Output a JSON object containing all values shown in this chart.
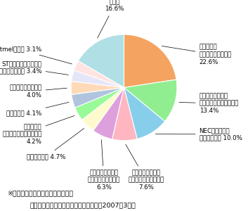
{
  "slices": [
    {
      "label": "ルネサス・\nテクノロジー（日）\n22.6%",
      "value": 22.6,
      "color": "#F4A460"
    },
    {
      "label": "フリースケール・\nセミコンダクター（米）\n13.4%",
      "value": 13.4,
      "color": "#90EE90"
    },
    {
      "label": "NECエレクトロ\nニクス（日） 10.0%",
      "value": 10.0,
      "color": "#87CEEB"
    },
    {
      "label": "インフィニオン・\nテクノロジーズ（独）\n7.6%",
      "value": 7.6,
      "color": "#FFB6C1"
    },
    {
      "label": "マイクロチップ・\nテクノロジー（米）\n6.3%",
      "value": 6.3,
      "color": "#DDA0DD"
    },
    {
      "label": "富士通（日） 4.7%",
      "value": 4.7,
      "color": "#FFFACD"
    },
    {
      "label": "テキサス・\nインスツルメンツ（米）\n4.2%",
      "value": 4.2,
      "color": "#98FB98"
    },
    {
      "label": "東苝（日） 4.1%",
      "value": 4.1,
      "color": "#B0C4DE"
    },
    {
      "label": "松下電器産業（日）\n4.0%",
      "value": 4.0,
      "color": "#FFDAB9"
    },
    {
      "label": "STマイクロエレクトロ\nニクス（伊／仏） 3.4%",
      "value": 3.4,
      "color": "#E6E6FA"
    },
    {
      "label": "Atmel（米） 3.1%",
      "value": 3.1,
      "color": "#FFE4E1"
    },
    {
      "label": "その他\n16.6%",
      "value": 16.6,
      "color": "#B0E0E6"
    }
  ],
  "note1": "※　３％以上のシェアを有する企業",
  "note2": "（出典）ガートナー　データクエスト（2007年3月）",
  "bg_color": "#FFFFFF",
  "label_positions": [
    {
      "xt": 1.42,
      "yt": 0.62,
      "ha": "left",
      "va": "center"
    },
    {
      "xt": 1.42,
      "yt": -0.3,
      "ha": "left",
      "va": "center"
    },
    {
      "xt": 1.42,
      "yt": -0.88,
      "ha": "left",
      "va": "center"
    },
    {
      "xt": 0.42,
      "yt": -1.55,
      "ha": "center",
      "va": "top"
    },
    {
      "xt": -0.38,
      "yt": -1.55,
      "ha": "center",
      "va": "top"
    },
    {
      "xt": -1.1,
      "yt": -1.3,
      "ha": "right",
      "va": "center"
    },
    {
      "xt": -1.55,
      "yt": -0.88,
      "ha": "right",
      "va": "center"
    },
    {
      "xt": -1.55,
      "yt": -0.48,
      "ha": "right",
      "va": "center"
    },
    {
      "xt": -1.55,
      "yt": -0.08,
      "ha": "right",
      "va": "center"
    },
    {
      "xt": -1.55,
      "yt": 0.38,
      "ha": "right",
      "va": "center"
    },
    {
      "xt": -1.55,
      "yt": 0.72,
      "ha": "right",
      "va": "center"
    },
    {
      "xt": -0.18,
      "yt": 1.42,
      "ha": "center",
      "va": "bottom"
    }
  ]
}
